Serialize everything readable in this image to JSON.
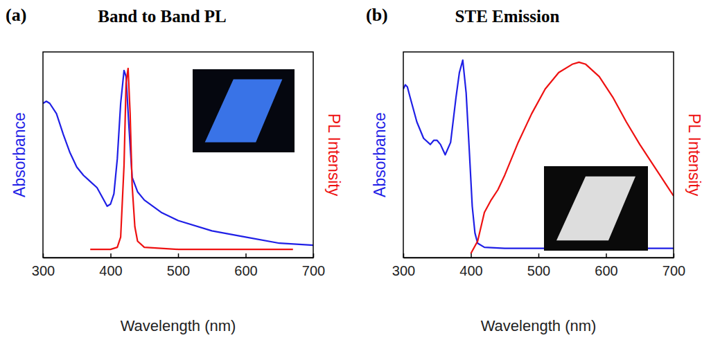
{
  "chart_data": [
    {
      "type": "line",
      "panel_label": "(a)",
      "title": "Band to Band PL",
      "xlabel": "Wavelength (nm)",
      "ylabel": "Absorbance",
      "y2label": "PL Intensity",
      "xlim": [
        300,
        700
      ],
      "xticks": [
        300,
        400,
        500,
        600,
        700
      ],
      "ylim": [
        0,
        1
      ],
      "y2lim": [
        0,
        1
      ],
      "tick_labels": "x",
      "series": [
        {
          "color": "#1f1fe6",
          "x": [
            300,
            305,
            310,
            320,
            330,
            340,
            350,
            360,
            370,
            380,
            390,
            395,
            400,
            405,
            410,
            415,
            420,
            423,
            427,
            432,
            440,
            450,
            475,
            500,
            550,
            600,
            650,
            700
          ],
          "values": [
            0.75,
            0.76,
            0.75,
            0.7,
            0.6,
            0.51,
            0.44,
            0.4,
            0.37,
            0.34,
            0.28,
            0.25,
            0.26,
            0.31,
            0.48,
            0.75,
            0.91,
            0.88,
            0.65,
            0.39,
            0.32,
            0.28,
            0.22,
            0.18,
            0.13,
            0.1,
            0.07,
            0.06
          ]
        },
        {
          "color": "#ee1111",
          "axis": "y2",
          "x": [
            370,
            400,
            410,
            415,
            420,
            423,
            426,
            429,
            432,
            436,
            440,
            450,
            500,
            600,
            670
          ],
          "values": [
            0.04,
            0.04,
            0.05,
            0.1,
            0.45,
            0.85,
            0.92,
            0.7,
            0.35,
            0.15,
            0.08,
            0.05,
            0.04,
            0.04,
            0.04
          ]
        }
      ]
    },
    {
      "type": "line",
      "panel_label": "(b)",
      "title": "STE Emission",
      "xlabel": "Wavelength (nm)",
      "ylabel": "Absorbance",
      "y2label": "PL Intensity",
      "xlim": [
        300,
        700
      ],
      "xticks": [
        300,
        400,
        500,
        600,
        700
      ],
      "ylim": [
        0,
        1
      ],
      "y2lim": [
        0,
        1
      ],
      "tick_labels": "x",
      "series": [
        {
          "color": "#1f1fe6",
          "x": [
            300,
            303,
            306,
            310,
            320,
            330,
            340,
            345,
            350,
            355,
            362,
            370,
            378,
            383,
            388,
            393,
            398,
            402,
            406,
            410,
            420,
            450,
            500,
            600,
            700
          ],
          "values": [
            0.82,
            0.84,
            0.83,
            0.78,
            0.66,
            0.58,
            0.55,
            0.57,
            0.57,
            0.55,
            0.5,
            0.56,
            0.78,
            0.9,
            0.96,
            0.8,
            0.5,
            0.25,
            0.12,
            0.07,
            0.05,
            0.045,
            0.045,
            0.045,
            0.045
          ]
        },
        {
          "color": "#ee1111",
          "axis": "y2",
          "x": [
            400,
            410,
            420,
            430,
            440,
            450,
            470,
            490,
            510,
            530,
            550,
            560,
            570,
            590,
            610,
            630,
            650,
            670,
            690,
            700
          ],
          "values": [
            0.02,
            0.08,
            0.22,
            0.28,
            0.33,
            0.4,
            0.56,
            0.7,
            0.82,
            0.9,
            0.94,
            0.95,
            0.94,
            0.88,
            0.78,
            0.66,
            0.55,
            0.45,
            0.35,
            0.3
          ]
        }
      ]
    }
  ]
}
